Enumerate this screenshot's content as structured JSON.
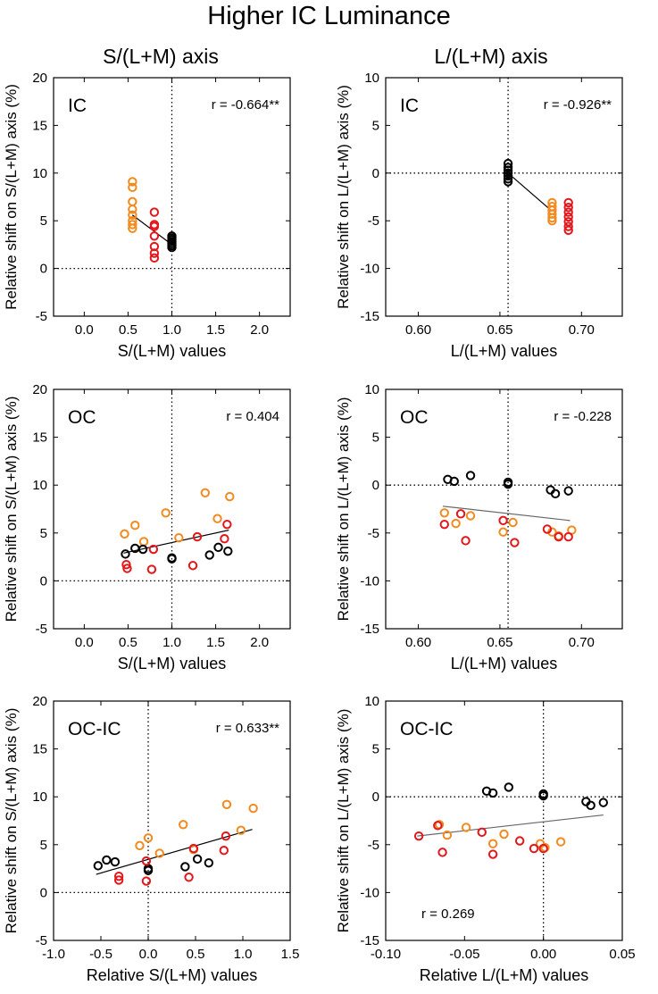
{
  "figure_title": "Higher IC Luminance",
  "column_titles": [
    "S/(L+M) axis",
    "L/(L+M) axis"
  ],
  "colors": {
    "black": "#000000",
    "orange": "#f28a1e",
    "red": "#e3171b",
    "fit_line": "#000000",
    "fit_line_gray": "#666666"
  },
  "chart_data": [
    {
      "type": "scatter",
      "panel_label": "IC",
      "r_label": "r = -0.664**",
      "xlabel": "S/(L+M) values",
      "ylabel": "Relative shift on S/(L+M) axis (%)",
      "xlim": [
        -0.35,
        2.35
      ],
      "ylim": [
        -5,
        20
      ],
      "xticks": [
        "0.0",
        "0.5",
        "1.0",
        "1.5",
        "2.0"
      ],
      "xtick_values": [
        0,
        0.5,
        1.0,
        1.5,
        2.0
      ],
      "yticks": [
        "-5",
        "0",
        "5",
        "10",
        "15",
        "20"
      ],
      "ytick_values": [
        -5,
        0,
        5,
        10,
        15,
        20
      ],
      "vline": 1.0,
      "hline": 0,
      "fit": {
        "x": [
          0.55,
          1.0
        ],
        "y": [
          5.6,
          2.5
        ],
        "color": "black"
      },
      "series": [
        {
          "name": "orange",
          "color": "orange",
          "x": [
            0.55,
            0.55,
            0.55,
            0.55,
            0.55,
            0.55,
            0.55,
            0.55
          ],
          "y": [
            9.1,
            8.5,
            7.0,
            6.2,
            5.6,
            5.0,
            4.6,
            4.2
          ]
        },
        {
          "name": "red",
          "color": "red",
          "x": [
            0.8,
            0.8,
            0.8,
            0.8,
            0.8,
            0.8,
            0.8
          ],
          "y": [
            5.9,
            4.6,
            4.4,
            3.4,
            2.3,
            1.6,
            1.1
          ]
        },
        {
          "name": "black",
          "color": "black",
          "x": [
            1.0,
            1.0,
            1.0,
            1.0,
            1.0,
            1.0,
            1.0
          ],
          "y": [
            3.4,
            3.2,
            3.0,
            2.8,
            2.6,
            2.4,
            2.2
          ]
        }
      ]
    },
    {
      "type": "scatter",
      "panel_label": "IC",
      "r_label": "r = -0.926**",
      "xlabel": "L/(L+M) values",
      "ylabel": "Relative shift on L/(L+M) axis (%)",
      "xlim": [
        0.58,
        0.725
      ],
      "ylim": [
        -15,
        10
      ],
      "xticks": [
        "0.60",
        "0.65",
        "0.70"
      ],
      "xtick_values": [
        0.6,
        0.65,
        0.7
      ],
      "yticks": [
        "-15",
        "-10",
        "-5",
        "0",
        "5",
        "10"
      ],
      "ytick_values": [
        -15,
        -10,
        -5,
        0,
        5,
        10
      ],
      "vline": 0.655,
      "hline": 0,
      "fit": {
        "x": [
          0.655,
          0.682
        ],
        "y": [
          0.0,
          -4.0
        ],
        "color": "black"
      },
      "series": [
        {
          "name": "black",
          "color": "black",
          "x": [
            0.655,
            0.655,
            0.655,
            0.655,
            0.655,
            0.655,
            0.655
          ],
          "y": [
            1.0,
            0.6,
            0.3,
            0.0,
            -0.3,
            -0.6,
            -0.9
          ]
        },
        {
          "name": "orange",
          "color": "orange",
          "x": [
            0.682,
            0.682,
            0.682,
            0.682,
            0.682,
            0.682
          ],
          "y": [
            -3.1,
            -3.5,
            -3.9,
            -4.3,
            -4.7,
            -5.0
          ]
        },
        {
          "name": "red",
          "color": "red",
          "x": [
            0.692,
            0.692,
            0.692,
            0.692,
            0.692,
            0.692,
            0.692
          ],
          "y": [
            -3.1,
            -3.6,
            -4.1,
            -4.6,
            -5.1,
            -5.6,
            -6.0
          ]
        }
      ]
    },
    {
      "type": "scatter",
      "panel_label": "OC",
      "r_label": "r = 0.404",
      "xlabel": "S/(L+M) values",
      "ylabel": "Relative shift on S/(L+M) axis (%)",
      "xlim": [
        -0.35,
        2.35
      ],
      "ylim": [
        -5,
        20
      ],
      "xticks": [
        "0.0",
        "0.5",
        "1.0",
        "1.5",
        "2.0"
      ],
      "xtick_values": [
        0,
        0.5,
        1.0,
        1.5,
        2.0
      ],
      "yticks": [
        "-5",
        "0",
        "5",
        "10",
        "15",
        "20"
      ],
      "ytick_values": [
        -5,
        0,
        5,
        10,
        15,
        20
      ],
      "vline": 1.0,
      "hline": 0,
      "fit": {
        "x": [
          0.45,
          1.65
        ],
        "y": [
          2.9,
          5.3
        ],
        "color": "black"
      },
      "series": [
        {
          "name": "orange",
          "color": "orange",
          "x": [
            0.46,
            0.58,
            0.68,
            0.93,
            1.08,
            1.38,
            1.52,
            1.66
          ],
          "y": [
            4.9,
            5.8,
            4.1,
            7.1,
            4.5,
            9.2,
            6.5,
            8.8
          ]
        },
        {
          "name": "red",
          "color": "red",
          "x": [
            0.48,
            0.49,
            0.77,
            0.79,
            1.24,
            1.29,
            1.6,
            1.63
          ],
          "y": [
            1.7,
            1.3,
            1.2,
            3.3,
            1.6,
            4.6,
            4.4,
            5.9
          ]
        },
        {
          "name": "black",
          "color": "black",
          "x": [
            0.47,
            0.58,
            0.67,
            1.0,
            1.0,
            1.43,
            1.53,
            1.64
          ],
          "y": [
            2.8,
            3.4,
            3.3,
            2.4,
            2.3,
            2.7,
            3.5,
            3.1
          ]
        }
      ]
    },
    {
      "type": "scatter",
      "panel_label": "OC",
      "r_label": "r = -0.228",
      "xlabel": "L/(L+M) values",
      "ylabel": "Relative shift on L/(L+M) axis (%)",
      "xlim": [
        0.58,
        0.725
      ],
      "ylim": [
        -15,
        10
      ],
      "xticks": [
        "0.60",
        "0.65",
        "0.70"
      ],
      "xtick_values": [
        0.6,
        0.65,
        0.7
      ],
      "yticks": [
        "-15",
        "-10",
        "-5",
        "0",
        "5",
        "10"
      ],
      "ytick_values": [
        -15,
        -10,
        -5,
        0,
        5,
        10
      ],
      "vline": 0.655,
      "hline": 0,
      "fit": {
        "x": [
          0.615,
          0.693
        ],
        "y": [
          -2.2,
          -3.7
        ],
        "color": "gray"
      },
      "series": [
        {
          "name": "black",
          "color": "black",
          "x": [
            0.618,
            0.622,
            0.632,
            0.655,
            0.655,
            0.681,
            0.684,
            0.692
          ],
          "y": [
            0.6,
            0.4,
            1.0,
            0.3,
            0.1,
            -0.5,
            -0.9,
            -0.6
          ]
        },
        {
          "name": "orange",
          "color": "orange",
          "x": [
            0.616,
            0.623,
            0.632,
            0.652,
            0.658,
            0.682,
            0.686,
            0.694
          ],
          "y": [
            -2.9,
            -4.0,
            -3.2,
            -4.9,
            -3.9,
            -4.9,
            -5.3,
            -4.7
          ]
        },
        {
          "name": "red",
          "color": "red",
          "x": [
            0.616,
            0.626,
            0.629,
            0.652,
            0.659,
            0.679,
            0.686,
            0.692
          ],
          "y": [
            -4.1,
            -3.0,
            -5.8,
            -3.7,
            -6.0,
            -4.6,
            -5.4,
            -5.4
          ]
        }
      ]
    },
    {
      "type": "scatter",
      "panel_label": "OC-IC",
      "r_label": "r = 0.633**",
      "xlabel": "Relative S/(L+M) values",
      "ylabel": "Relative shift on S/(L+M) axis (%)",
      "xlim": [
        -1.0,
        1.5
      ],
      "ylim": [
        -5,
        20
      ],
      "xticks": [
        "-1.0",
        "-0.5",
        "0.0",
        "0.5",
        "1.0",
        "1.5"
      ],
      "xtick_values": [
        -1.0,
        -0.5,
        0.0,
        0.5,
        1.0,
        1.5
      ],
      "yticks": [
        "-5",
        "0",
        "5",
        "10",
        "15",
        "20"
      ],
      "ytick_values": [
        -5,
        0,
        5,
        10,
        15,
        20
      ],
      "vline": 0.0,
      "hline": 0,
      "fit": {
        "x": [
          -0.55,
          1.1
        ],
        "y": [
          1.9,
          6.6
        ],
        "color": "black"
      },
      "series": [
        {
          "name": "black",
          "color": "black",
          "x": [
            -0.53,
            -0.44,
            -0.35,
            0.0,
            0.0,
            0.39,
            0.52,
            0.64
          ],
          "y": [
            2.8,
            3.4,
            3.2,
            2.5,
            2.3,
            2.7,
            3.5,
            3.1
          ]
        },
        {
          "name": "orange",
          "color": "orange",
          "x": [
            -0.09,
            0.0,
            0.12,
            0.37,
            0.48,
            0.83,
            0.98,
            1.11
          ],
          "y": [
            4.9,
            5.7,
            4.1,
            7.1,
            4.5,
            9.2,
            6.5,
            8.8
          ]
        },
        {
          "name": "red",
          "color": "red",
          "x": [
            -0.31,
            -0.31,
            -0.02,
            -0.02,
            0.43,
            0.48,
            0.8,
            0.82
          ],
          "y": [
            1.7,
            1.3,
            1.2,
            3.3,
            1.6,
            4.6,
            4.4,
            5.9
          ]
        }
      ]
    },
    {
      "type": "scatter",
      "panel_label": "OC-IC",
      "r_label": "r = 0.269",
      "xlabel": "Relative L/(L+M) values",
      "ylabel": "Relative shift on L/(L+M) axis (%)",
      "xlim": [
        -0.1,
        0.05
      ],
      "ylim": [
        -15,
        10
      ],
      "xticks": [
        "-0.10",
        "-0.05",
        "0.00",
        "0.05"
      ],
      "xtick_values": [
        -0.1,
        -0.05,
        0.0,
        0.05
      ],
      "yticks": [
        "-15",
        "-10",
        "-5",
        "0",
        "5",
        "10"
      ],
      "ytick_values": [
        -15,
        -10,
        -5,
        0,
        5,
        10
      ],
      "vline": 0.0,
      "hline": 0,
      "fit": {
        "x": [
          -0.08,
          0.038
        ],
        "y": [
          -4.1,
          -1.9
        ],
        "color": "gray"
      },
      "series": [
        {
          "name": "black",
          "color": "black",
          "x": [
            -0.036,
            -0.032,
            -0.022,
            0.0,
            0.0,
            0.027,
            0.03,
            0.038
          ],
          "y": [
            0.6,
            0.4,
            1.0,
            0.3,
            0.1,
            -0.5,
            -0.9,
            -0.6
          ]
        },
        {
          "name": "orange",
          "color": "orange",
          "x": [
            -0.066,
            -0.061,
            -0.049,
            -0.032,
            -0.025,
            -0.002,
            0.001,
            0.011
          ],
          "y": [
            -2.9,
            -4.0,
            -3.2,
            -4.9,
            -3.9,
            -4.9,
            -5.3,
            -4.7
          ]
        },
        {
          "name": "red",
          "color": "red",
          "x": [
            -0.079,
            -0.067,
            -0.064,
            -0.039,
            -0.032,
            -0.015,
            -0.006,
            0.0
          ],
          "y": [
            -4.1,
            -3.0,
            -5.8,
            -3.7,
            -6.0,
            -4.6,
            -5.4,
            -5.4
          ]
        }
      ]
    }
  ]
}
